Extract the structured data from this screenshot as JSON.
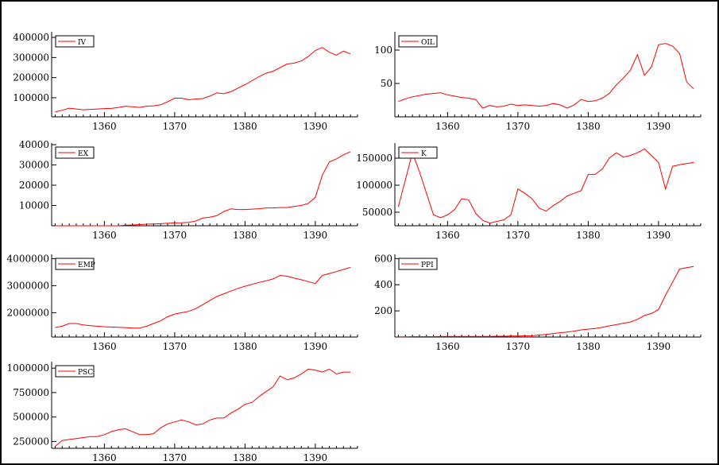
{
  "chart_data": [
    {
      "type": "line",
      "series": [
        {
          "name": "IV"
        }
      ],
      "x": [
        1353,
        1354,
        1355,
        1356,
        1357,
        1358,
        1359,
        1360,
        1361,
        1362,
        1363,
        1364,
        1365,
        1366,
        1367,
        1368,
        1369,
        1370,
        1371,
        1372,
        1373,
        1374,
        1375,
        1376,
        1377,
        1378,
        1379,
        1380,
        1381,
        1382,
        1383,
        1384,
        1385,
        1386,
        1387,
        1388,
        1389,
        1390,
        1391,
        1392,
        1393,
        1394,
        1395
      ],
      "y": [
        30000,
        38000,
        48000,
        44000,
        40000,
        42000,
        44000,
        46000,
        47000,
        52000,
        58000,
        55000,
        52000,
        58000,
        60000,
        65000,
        80000,
        98000,
        98000,
        90000,
        94000,
        96000,
        108000,
        124000,
        120000,
        130000,
        148000,
        165000,
        185000,
        205000,
        222000,
        232000,
        250000,
        268000,
        272000,
        283000,
        305000,
        335000,
        350000,
        326000,
        312000,
        332000,
        318000
      ],
      "xticks": [
        "1360",
        "1370",
        "1380",
        "1390"
      ],
      "yticks": [
        "100000",
        "200000",
        "300000",
        "400000"
      ],
      "xlim": [
        1352.5,
        1396
      ],
      "ylim": [
        5000,
        420000
      ]
    },
    {
      "type": "line",
      "series": [
        {
          "name": "OIL"
        }
      ],
      "x": [
        1353,
        1354,
        1355,
        1356,
        1357,
        1358,
        1359,
        1360,
        1361,
        1362,
        1363,
        1364,
        1365,
        1366,
        1367,
        1368,
        1369,
        1370,
        1371,
        1372,
        1373,
        1374,
        1375,
        1376,
        1377,
        1378,
        1379,
        1380,
        1381,
        1382,
        1383,
        1384,
        1385,
        1386,
        1387,
        1388,
        1389,
        1390,
        1391,
        1392,
        1393,
        1394,
        1395
      ],
      "y": [
        23,
        27,
        30,
        32,
        34,
        35,
        36,
        33,
        31,
        29,
        28,
        26,
        13,
        17,
        15,
        16,
        19,
        17,
        18,
        17,
        16,
        17,
        20,
        18,
        13,
        18,
        26,
        23,
        24,
        28,
        35,
        48,
        58,
        70,
        93,
        62,
        75,
        108,
        110,
        106,
        95,
        52,
        42
      ],
      "xticks": [
        "1360",
        "1370",
        "1380",
        "1390"
      ],
      "yticks": [
        "50",
        "100"
      ],
      "xlim": [
        1352.5,
        1396
      ],
      "ylim": [
        0,
        125
      ]
    },
    {
      "type": "line",
      "series": [
        {
          "name": "EX"
        }
      ],
      "x": [
        1353,
        1354,
        1355,
        1356,
        1357,
        1358,
        1359,
        1360,
        1361,
        1362,
        1363,
        1364,
        1365,
        1366,
        1367,
        1368,
        1369,
        1370,
        1371,
        1372,
        1373,
        1374,
        1375,
        1376,
        1377,
        1378,
        1379,
        1380,
        1381,
        1382,
        1383,
        1384,
        1385,
        1386,
        1387,
        1388,
        1389,
        1390,
        1391,
        1392,
        1393,
        1394,
        1395
      ],
      "y": [
        0,
        0,
        0,
        0,
        0,
        0,
        0,
        0,
        0,
        0,
        300,
        400,
        600,
        800,
        900,
        1000,
        1200,
        1400,
        1500,
        1700,
        2300,
        3800,
        4200,
        5000,
        7000,
        8300,
        8000,
        8000,
        8200,
        8400,
        8800,
        8800,
        9000,
        9000,
        9500,
        10000,
        11000,
        14000,
        25000,
        31500,
        33000,
        35000,
        36500
      ],
      "xticks": [
        "1360",
        "1370",
        "1380",
        "1390"
      ],
      "yticks": [
        "10000",
        "20000",
        "30000",
        "40000"
      ],
      "xlim": [
        1352.5,
        1396
      ],
      "ylim": [
        0,
        40000
      ]
    },
    {
      "type": "line",
      "series": [
        {
          "name": "K"
        }
      ],
      "x": [
        1353,
        1354,
        1355,
        1356,
        1357,
        1358,
        1359,
        1360,
        1361,
        1362,
        1363,
        1364,
        1365,
        1366,
        1367,
        1368,
        1369,
        1370,
        1371,
        1372,
        1373,
        1374,
        1375,
        1376,
        1377,
        1378,
        1379,
        1380,
        1381,
        1382,
        1383,
        1384,
        1385,
        1386,
        1387,
        1388,
        1389,
        1390,
        1391,
        1392,
        1393,
        1394,
        1395
      ],
      "y": [
        60000,
        110000,
        160000,
        125000,
        85000,
        45000,
        40000,
        45000,
        55000,
        75000,
        73000,
        48000,
        35000,
        30000,
        33000,
        36000,
        45000,
        93000,
        85000,
        75000,
        58000,
        52000,
        62000,
        70000,
        80000,
        85000,
        90000,
        120000,
        120000,
        130000,
        150000,
        160000,
        152000,
        155000,
        160000,
        167000,
        155000,
        142000,
        93000,
        135000,
        138000,
        140000,
        142000
      ],
      "xticks": [
        "1360",
        "1370",
        "1380",
        "1390"
      ],
      "yticks": [
        "50000",
        "100000",
        "150000"
      ],
      "xlim": [
        1352.5,
        1396
      ],
      "ylim": [
        25000,
        175000
      ]
    },
    {
      "type": "line",
      "series": [
        {
          "name": "EMP"
        }
      ],
      "x": [
        1353,
        1354,
        1355,
        1356,
        1357,
        1358,
        1359,
        1360,
        1361,
        1362,
        1363,
        1364,
        1365,
        1366,
        1367,
        1368,
        1369,
        1370,
        1371,
        1372,
        1373,
        1374,
        1375,
        1376,
        1377,
        1378,
        1379,
        1380,
        1381,
        1382,
        1383,
        1384,
        1385,
        1386,
        1387,
        1388,
        1389,
        1390,
        1391,
        1392,
        1393,
        1394,
        1395
      ],
      "y": [
        1450000,
        1500000,
        1600000,
        1600000,
        1550000,
        1520000,
        1500000,
        1480000,
        1470000,
        1460000,
        1450000,
        1430000,
        1430000,
        1500000,
        1600000,
        1700000,
        1850000,
        1950000,
        2000000,
        2050000,
        2150000,
        2300000,
        2450000,
        2600000,
        2700000,
        2800000,
        2900000,
        2980000,
        3050000,
        3120000,
        3180000,
        3250000,
        3380000,
        3350000,
        3280000,
        3220000,
        3150000,
        3080000,
        3380000,
        3450000,
        3520000,
        3600000,
        3680000
      ],
      "xticks": [
        "1360",
        "1370",
        "1380",
        "1390"
      ],
      "yticks": [
        "2000000",
        "3000000",
        "4000000"
      ],
      "xlim": [
        1352.5,
        1396
      ],
      "ylim": [
        1100000,
        4100000
      ]
    },
    {
      "type": "line",
      "series": [
        {
          "name": "PPI"
        }
      ],
      "x": [
        1353,
        1354,
        1355,
        1356,
        1357,
        1358,
        1359,
        1360,
        1361,
        1362,
        1363,
        1364,
        1365,
        1366,
        1367,
        1368,
        1369,
        1370,
        1371,
        1372,
        1373,
        1374,
        1375,
        1376,
        1377,
        1378,
        1379,
        1380,
        1381,
        1382,
        1383,
        1384,
        1385,
        1386,
        1387,
        1388,
        1389,
        1390,
        1391,
        1392,
        1393,
        1394,
        1395
      ],
      "y": [
        2,
        2,
        3,
        3,
        3,
        3,
        4,
        4,
        4,
        4,
        5,
        5,
        5,
        5,
        6,
        6,
        7,
        8,
        9,
        10,
        15,
        20,
        27,
        33,
        38,
        45,
        55,
        60,
        65,
        75,
        85,
        95,
        105,
        115,
        135,
        165,
        180,
        210,
        320,
        420,
        520,
        530,
        540
      ],
      "xticks": [
        "1360",
        "1370",
        "1380",
        "1390"
      ],
      "yticks": [
        "200",
        "400",
        "600"
      ],
      "xlim": [
        1352.5,
        1396
      ],
      "ylim": [
        0,
        620
      ]
    },
    {
      "type": "line",
      "series": [
        {
          "name": "PSC"
        }
      ],
      "x": [
        1353,
        1354,
        1355,
        1356,
        1357,
        1358,
        1359,
        1360,
        1361,
        1362,
        1363,
        1364,
        1365,
        1366,
        1367,
        1368,
        1369,
        1370,
        1371,
        1372,
        1373,
        1374,
        1375,
        1376,
        1377,
        1378,
        1379,
        1380,
        1381,
        1382,
        1383,
        1384,
        1385,
        1386,
        1387,
        1388,
        1389,
        1390,
        1391,
        1392,
        1393,
        1394,
        1395
      ],
      "y": [
        200000,
        260000,
        270000,
        280000,
        290000,
        300000,
        300000,
        320000,
        350000,
        370000,
        380000,
        350000,
        320000,
        320000,
        330000,
        390000,
        430000,
        450000,
        470000,
        450000,
        420000,
        430000,
        470000,
        490000,
        490000,
        540000,
        580000,
        630000,
        650000,
        710000,
        760000,
        810000,
        920000,
        880000,
        900000,
        940000,
        990000,
        980000,
        960000,
        990000,
        940000,
        960000,
        960000
      ],
      "xticks": [
        "1360",
        "1370",
        "1380",
        "1390"
      ],
      "yticks": [
        "250000",
        "500000",
        "750000",
        "1000000"
      ],
      "xlim": [
        1352.5,
        1396
      ],
      "ylim": [
        180000,
        1050000
      ]
    }
  ],
  "style": {
    "line_color": "#ff0000",
    "axis_color": "#000000"
  }
}
